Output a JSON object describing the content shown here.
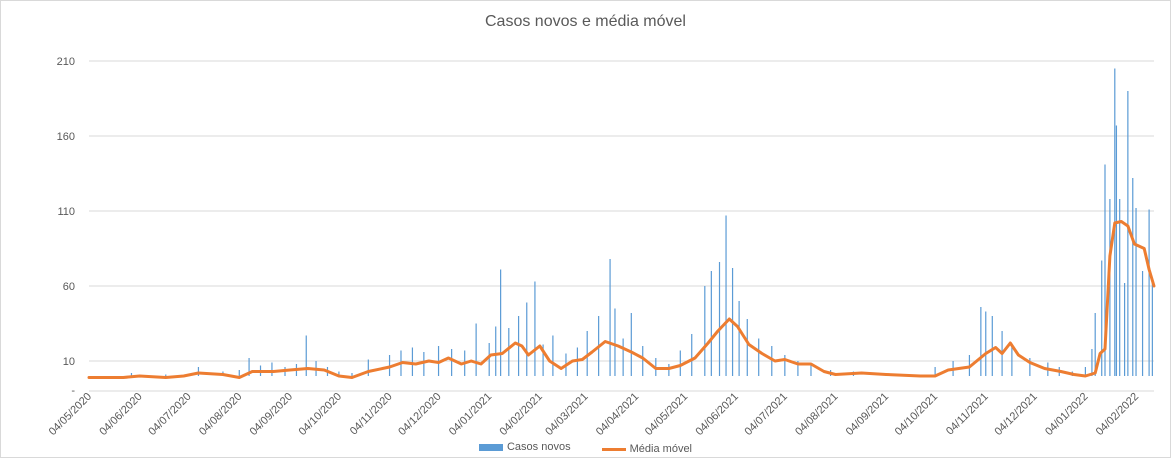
{
  "chart_data": {
    "type": "bar",
    "title": "Casos novos e média móvel",
    "xlabel": "",
    "ylabel": "",
    "ylim": [
      -10,
      210
    ],
    "y_ticks": [
      10,
      60,
      110,
      160,
      210
    ],
    "y_ticks_extra": [
      "-"
    ],
    "grid": true,
    "legend_position": "bottom",
    "x_start": "2020-05-04",
    "x_end": "2022-02-15",
    "x_tick_labels": [
      "04/05/2020",
      "04/06/2020",
      "04/07/2020",
      "04/08/2020",
      "04/09/2020",
      "04/10/2020",
      "04/11/2020",
      "04/12/2020",
      "04/01/2021",
      "04/02/2021",
      "04/03/2021",
      "04/04/2021",
      "04/05/2021",
      "04/06/2021",
      "04/07/2021",
      "04/08/2021",
      "04/09/2021",
      "04/10/2021",
      "04/11/2021",
      "04/12/2021",
      "04/01/2022",
      "04/02/2022"
    ],
    "colors": {
      "bars": "#5b9bd5",
      "line": "#ed7d31"
    },
    "series": [
      {
        "name": "Casos novos",
        "type": "bar",
        "points": [
          [
            "2020-05-04",
            0
          ],
          [
            "2020-05-30",
            2
          ],
          [
            "2020-06-20",
            1
          ],
          [
            "2020-07-10",
            6
          ],
          [
            "2020-07-25",
            3
          ],
          [
            "2020-08-04",
            4
          ],
          [
            "2020-08-10",
            12
          ],
          [
            "2020-08-17",
            7
          ],
          [
            "2020-08-24",
            9
          ],
          [
            "2020-09-01",
            6
          ],
          [
            "2020-09-08",
            8
          ],
          [
            "2020-09-14",
            27
          ],
          [
            "2020-09-20",
            10
          ],
          [
            "2020-09-27",
            6
          ],
          [
            "2020-10-04",
            3
          ],
          [
            "2020-10-12",
            2
          ],
          [
            "2020-10-22",
            11
          ],
          [
            "2020-11-04",
            14
          ],
          [
            "2020-11-11",
            17
          ],
          [
            "2020-11-18",
            19
          ],
          [
            "2020-11-25",
            16
          ],
          [
            "2020-12-04",
            20
          ],
          [
            "2020-12-12",
            18
          ],
          [
            "2020-12-20",
            17
          ],
          [
            "2020-12-27",
            35
          ],
          [
            "2021-01-04",
            22
          ],
          [
            "2021-01-08",
            33
          ],
          [
            "2021-01-11",
            71
          ],
          [
            "2021-01-16",
            32
          ],
          [
            "2021-01-22",
            40
          ],
          [
            "2021-01-27",
            49
          ],
          [
            "2021-02-01",
            63
          ],
          [
            "2021-02-06",
            21
          ],
          [
            "2021-02-12",
            27
          ],
          [
            "2021-02-20",
            15
          ],
          [
            "2021-02-27",
            19
          ],
          [
            "2021-03-05",
            30
          ],
          [
            "2021-03-12",
            40
          ],
          [
            "2021-03-19",
            78
          ],
          [
            "2021-03-22",
            45
          ],
          [
            "2021-03-27",
            25
          ],
          [
            "2021-04-01",
            42
          ],
          [
            "2021-04-08",
            20
          ],
          [
            "2021-04-16",
            12
          ],
          [
            "2021-04-24",
            8
          ],
          [
            "2021-05-01",
            17
          ],
          [
            "2021-05-08",
            28
          ],
          [
            "2021-05-16",
            60
          ],
          [
            "2021-05-20",
            70
          ],
          [
            "2021-05-25",
            76
          ],
          [
            "2021-05-29",
            107
          ],
          [
            "2021-06-02",
            72
          ],
          [
            "2021-06-06",
            50
          ],
          [
            "2021-06-11",
            38
          ],
          [
            "2021-06-18",
            25
          ],
          [
            "2021-06-26",
            20
          ],
          [
            "2021-07-04",
            14
          ],
          [
            "2021-07-12",
            10
          ],
          [
            "2021-07-20",
            8
          ],
          [
            "2021-08-01",
            4
          ],
          [
            "2021-08-15",
            3
          ],
          [
            "2021-09-04",
            2
          ],
          [
            "2021-09-20",
            1
          ],
          [
            "2021-10-04",
            6
          ],
          [
            "2021-10-15",
            10
          ],
          [
            "2021-10-25",
            14
          ],
          [
            "2021-11-01",
            46
          ],
          [
            "2021-11-04",
            43
          ],
          [
            "2021-11-08",
            40
          ],
          [
            "2021-11-14",
            30
          ],
          [
            "2021-11-20",
            20
          ],
          [
            "2021-12-01",
            12
          ],
          [
            "2021-12-12",
            9
          ],
          [
            "2021-12-19",
            6
          ],
          [
            "2021-12-27",
            3
          ],
          [
            "2022-01-04",
            6
          ],
          [
            "2022-01-08",
            18
          ],
          [
            "2022-01-10",
            42
          ],
          [
            "2022-01-14",
            77
          ],
          [
            "2022-01-16",
            141
          ],
          [
            "2022-01-19",
            118
          ],
          [
            "2022-01-22",
            205
          ],
          [
            "2022-01-23",
            167
          ],
          [
            "2022-01-25",
            118
          ],
          [
            "2022-01-28",
            62
          ],
          [
            "2022-01-30",
            190
          ],
          [
            "2022-02-02",
            132
          ],
          [
            "2022-02-04",
            112
          ],
          [
            "2022-02-08",
            70
          ],
          [
            "2022-02-12",
            111
          ],
          [
            "2022-02-14",
            62
          ]
        ]
      },
      {
        "name": "Média móvel",
        "type": "line",
        "points": [
          [
            "2020-05-04",
            -1
          ],
          [
            "2020-05-25",
            -1
          ],
          [
            "2020-06-04",
            0
          ],
          [
            "2020-06-20",
            -1
          ],
          [
            "2020-07-01",
            0
          ],
          [
            "2020-07-10",
            2
          ],
          [
            "2020-07-25",
            1
          ],
          [
            "2020-08-04",
            -1
          ],
          [
            "2020-08-12",
            3
          ],
          [
            "2020-08-25",
            3
          ],
          [
            "2020-09-04",
            4
          ],
          [
            "2020-09-15",
            5
          ],
          [
            "2020-09-25",
            4
          ],
          [
            "2020-10-04",
            0
          ],
          [
            "2020-10-12",
            -1
          ],
          [
            "2020-10-22",
            3
          ],
          [
            "2020-11-04",
            6
          ],
          [
            "2020-11-12",
            9
          ],
          [
            "2020-11-20",
            8
          ],
          [
            "2020-11-28",
            10
          ],
          [
            "2020-12-04",
            9
          ],
          [
            "2020-12-10",
            12
          ],
          [
            "2020-12-18",
            8
          ],
          [
            "2020-12-24",
            10
          ],
          [
            "2020-12-30",
            8
          ],
          [
            "2021-01-05",
            14
          ],
          [
            "2021-01-12",
            15
          ],
          [
            "2021-01-20",
            22
          ],
          [
            "2021-01-24",
            20
          ],
          [
            "2021-01-28",
            14
          ],
          [
            "2021-02-04",
            20
          ],
          [
            "2021-02-10",
            10
          ],
          [
            "2021-02-17",
            5
          ],
          [
            "2021-02-24",
            10
          ],
          [
            "2021-03-02",
            11
          ],
          [
            "2021-03-08",
            16
          ],
          [
            "2021-03-16",
            23
          ],
          [
            "2021-03-24",
            20
          ],
          [
            "2021-04-01",
            16
          ],
          [
            "2021-04-08",
            12
          ],
          [
            "2021-04-16",
            5
          ],
          [
            "2021-04-24",
            5
          ],
          [
            "2021-05-01",
            7
          ],
          [
            "2021-05-10",
            12
          ],
          [
            "2021-05-18",
            22
          ],
          [
            "2021-05-24",
            30
          ],
          [
            "2021-05-31",
            38
          ],
          [
            "2021-06-05",
            33
          ],
          [
            "2021-06-12",
            21
          ],
          [
            "2021-06-20",
            15
          ],
          [
            "2021-06-28",
            10
          ],
          [
            "2021-07-04",
            11
          ],
          [
            "2021-07-12",
            8
          ],
          [
            "2021-07-20",
            8
          ],
          [
            "2021-07-28",
            3
          ],
          [
            "2021-08-04",
            1
          ],
          [
            "2021-08-20",
            2
          ],
          [
            "2021-09-04",
            1
          ],
          [
            "2021-09-25",
            0
          ],
          [
            "2021-10-04",
            0
          ],
          [
            "2021-10-12",
            4
          ],
          [
            "2021-10-25",
            6
          ],
          [
            "2021-11-04",
            15
          ],
          [
            "2021-11-10",
            19
          ],
          [
            "2021-11-14",
            15
          ],
          [
            "2021-11-19",
            22
          ],
          [
            "2021-11-24",
            14
          ],
          [
            "2021-12-01",
            9
          ],
          [
            "2021-12-10",
            5
          ],
          [
            "2021-12-20",
            3
          ],
          [
            "2021-12-28",
            1
          ],
          [
            "2022-01-04",
            0
          ],
          [
            "2022-01-10",
            2
          ],
          [
            "2022-01-13",
            15
          ],
          [
            "2022-01-16",
            18
          ],
          [
            "2022-01-19",
            80
          ],
          [
            "2022-01-22",
            102
          ],
          [
            "2022-01-26",
            103
          ],
          [
            "2022-01-30",
            100
          ],
          [
            "2022-02-03",
            88
          ],
          [
            "2022-02-09",
            85
          ],
          [
            "2022-02-12",
            71
          ],
          [
            "2022-02-15",
            60
          ]
        ]
      }
    ]
  }
}
